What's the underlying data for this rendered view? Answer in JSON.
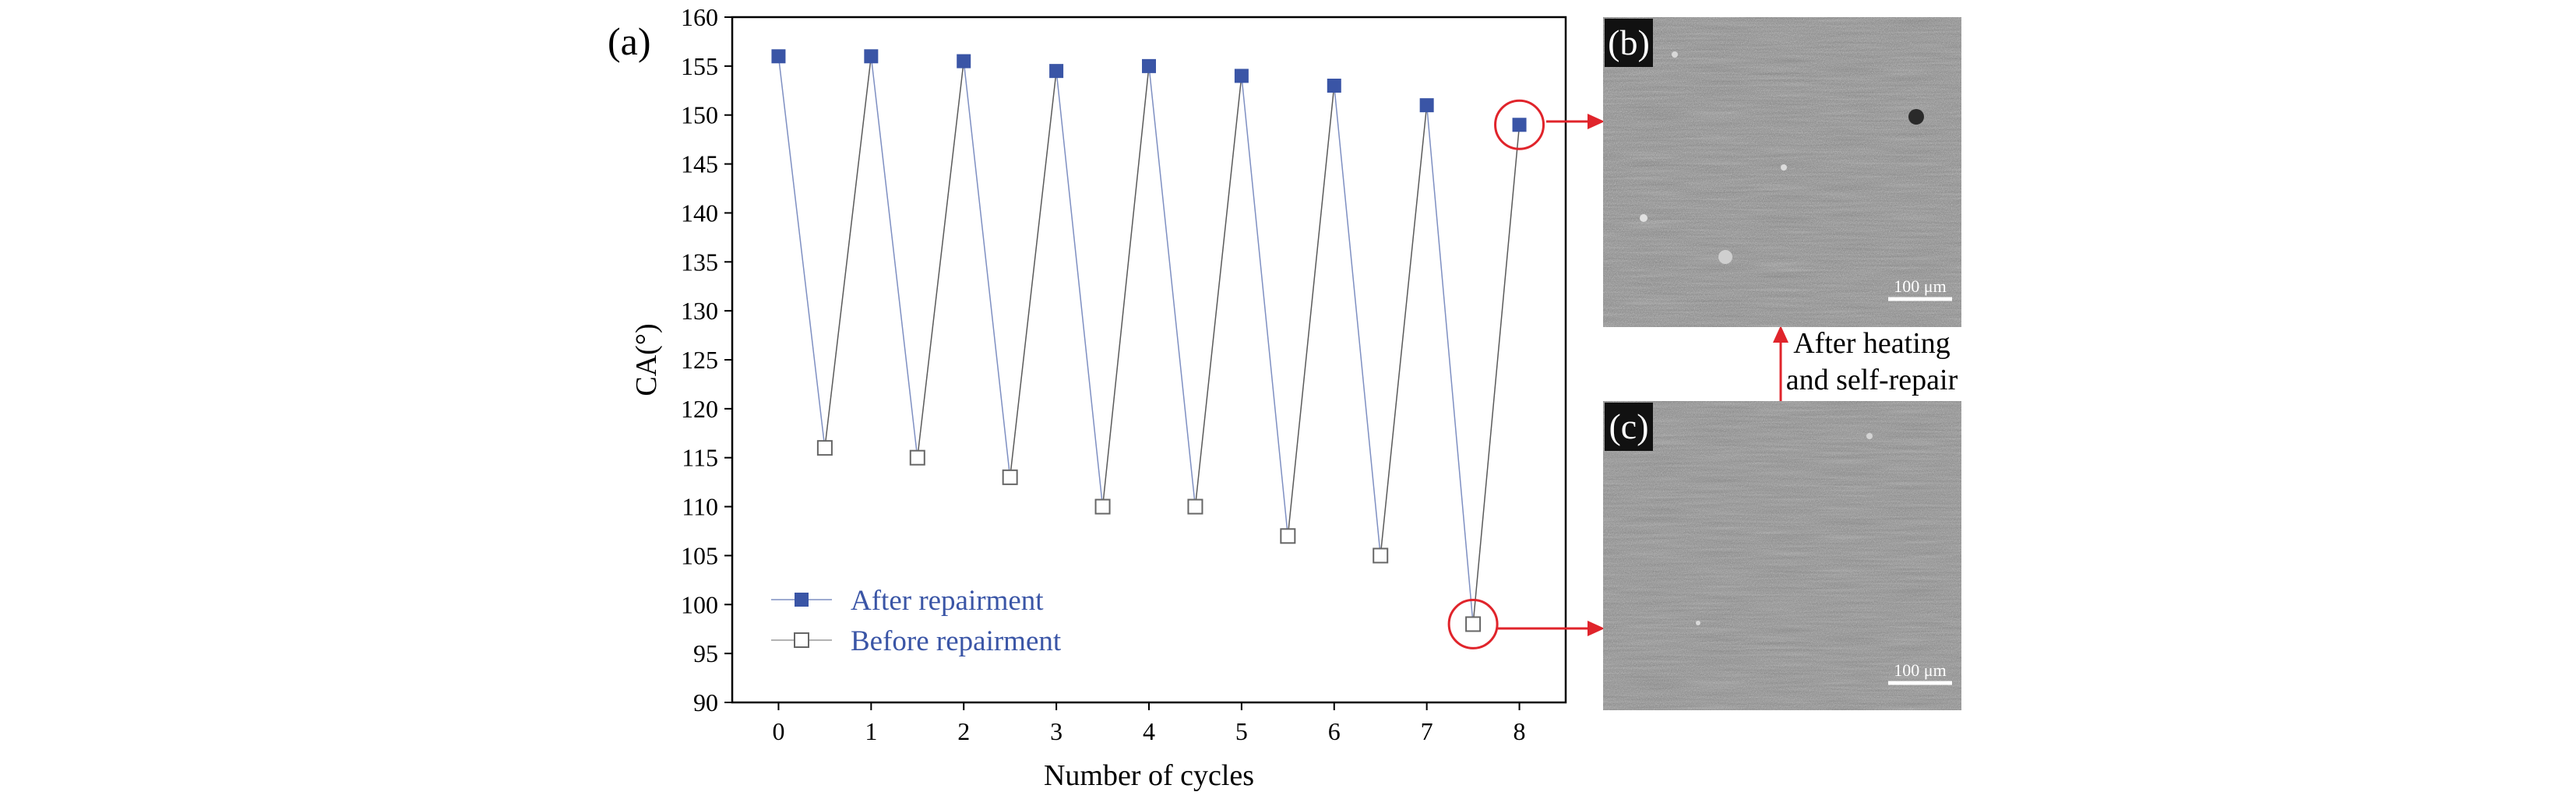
{
  "chart_data": {
    "type": "scatter",
    "panel_label": "(a)",
    "xlabel": "Number of cycles",
    "ylabel": "CA(°)",
    "xlim": [
      -0.5,
      8.5
    ],
    "ylim": [
      90,
      160
    ],
    "xticks": [
      "0",
      "1",
      "2",
      "3",
      "4",
      "5",
      "6",
      "7",
      "8"
    ],
    "yticks": [
      "90",
      "95",
      "100",
      "105",
      "110",
      "115",
      "120",
      "125",
      "130",
      "135",
      "140",
      "145",
      "150",
      "155",
      "160"
    ],
    "legend_position": "bottom-left",
    "series": [
      {
        "name": "After repairment",
        "marker": "filled-square",
        "color": "#3a55a6",
        "x": [
          0,
          1,
          2,
          3,
          4,
          5,
          6,
          7,
          8
        ],
        "values": [
          156,
          156,
          155.5,
          154.5,
          155,
          154,
          153,
          151,
          149
        ]
      },
      {
        "name": "Before repairment",
        "marker": "open-square",
        "color": "#666666",
        "x": [
          0.5,
          1.5,
          2.5,
          3.5,
          4.5,
          5.5,
          6.5,
          7.5
        ],
        "values": [
          116,
          115,
          113,
          110,
          110,
          107,
          105,
          98
        ]
      }
    ],
    "annotations": {
      "highlight_after_point": {
        "x": 8,
        "y": 149,
        "target": "(b)"
      },
      "highlight_before_point": {
        "x": 7.5,
        "y": 98,
        "target": "(c)"
      }
    }
  },
  "images": {
    "b": {
      "label": "(b)",
      "scale_bar": "100 μm"
    },
    "c": {
      "label": "(c)",
      "scale_bar": "100 μm"
    }
  },
  "transition_text": [
    "After heating",
    "and self-repair"
  ],
  "colors": {
    "after": "#3a55a6",
    "before": "#666666",
    "highlight": "#e0242b",
    "axis": "#000000"
  }
}
